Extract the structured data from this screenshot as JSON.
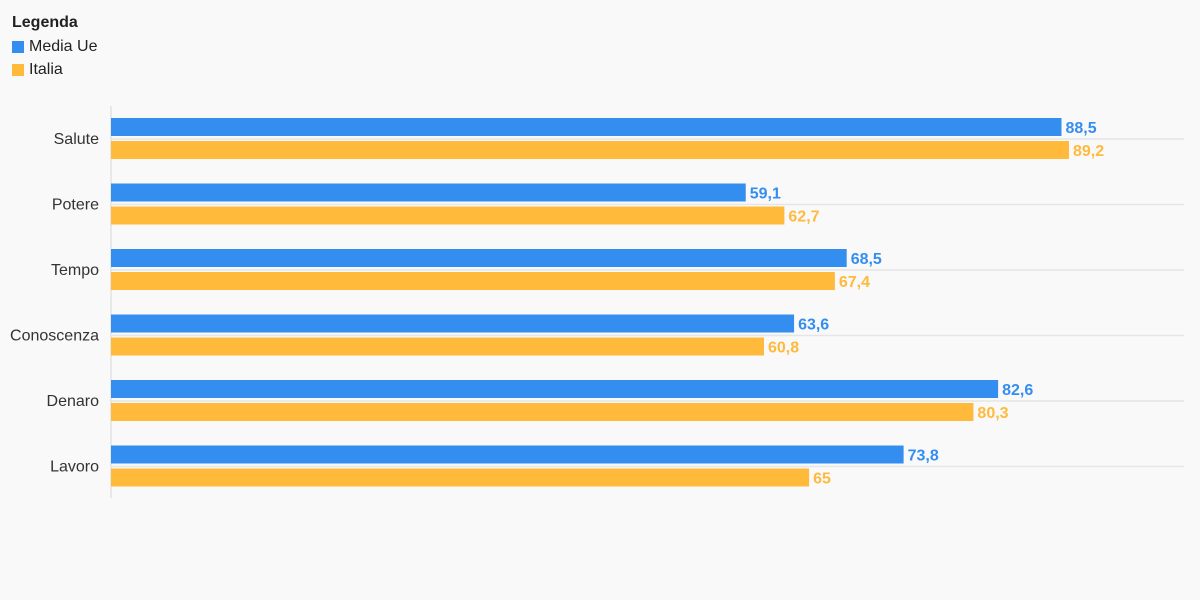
{
  "legend": {
    "title": "Legenda"
  },
  "chart_data": {
    "type": "bar",
    "orientation": "horizontal",
    "categories": [
      "Salute",
      "Potere",
      "Tempo",
      "Conoscenza",
      "Denaro",
      "Lavoro"
    ],
    "series": [
      {
        "name": "Media Ue",
        "color": "#348ef0",
        "values": [
          88.5,
          59.1,
          68.5,
          63.6,
          82.6,
          73.8
        ],
        "labels": [
          "88,5",
          "59,1",
          "68,5",
          "63,6",
          "82,6",
          "73,8"
        ]
      },
      {
        "name": "Italia",
        "color": "#ffba3c",
        "values": [
          89.2,
          62.7,
          67.4,
          60.8,
          80.3,
          65
        ],
        "labels": [
          "89,2",
          "62,7",
          "67,4",
          "60,8",
          "80,3",
          "65"
        ]
      }
    ],
    "xlim": [
      0,
      100
    ],
    "grid": true,
    "legend_position": "top-left"
  }
}
